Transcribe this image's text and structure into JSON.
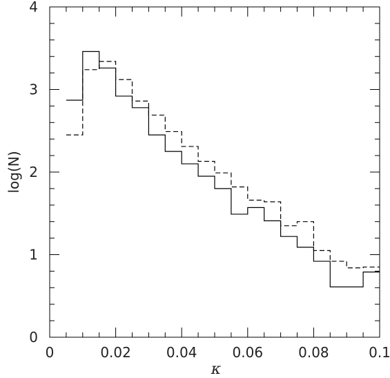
{
  "chart_data": {
    "type": "line",
    "style": "step-histogram",
    "xlabel": "κ",
    "ylabel": "log(N)",
    "xlim": [
      0,
      0.1
    ],
    "ylim": [
      0,
      4
    ],
    "x_ticks": [
      0,
      0.02,
      0.04,
      0.06,
      0.08,
      0.1
    ],
    "x_tick_labels": [
      "0",
      "0.02",
      "0.04",
      "0.06",
      "0.08",
      "0.1"
    ],
    "x_minor_step": 0.005,
    "y_ticks": [
      0,
      1,
      2,
      3,
      4
    ],
    "y_tick_labels": [
      "0",
      "1",
      "2",
      "3",
      "4"
    ],
    "y_minor_step": 0.2,
    "grid": false,
    "bin_edges": [
      0.005,
      0.01,
      0.015,
      0.02,
      0.025,
      0.03,
      0.035,
      0.04,
      0.045,
      0.05,
      0.055,
      0.06,
      0.065,
      0.07,
      0.075,
      0.08,
      0.085,
      0.09,
      0.095,
      0.1
    ],
    "series": [
      {
        "line_style": "solid",
        "values": [
          2.87,
          3.46,
          3.26,
          2.92,
          2.78,
          2.45,
          2.25,
          2.1,
          1.95,
          1.8,
          1.49,
          1.57,
          1.41,
          1.22,
          1.09,
          0.92,
          0.61,
          0.61,
          0.79
        ]
      },
      {
        "line_style": "dashed",
        "values": [
          2.45,
          3.24,
          3.34,
          3.12,
          2.86,
          2.69,
          2.49,
          2.31,
          2.13,
          1.99,
          1.82,
          1.66,
          1.64,
          1.35,
          1.4,
          1.05,
          0.92,
          0.84,
          0.85
        ]
      }
    ]
  }
}
